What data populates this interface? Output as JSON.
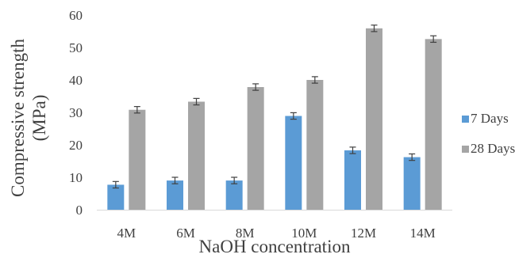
{
  "chart_data": {
    "type": "bar",
    "title": "",
    "xlabel": "NaOH concentration",
    "ylabel_lines": [
      "Compressive strength",
      "(MPa)"
    ],
    "categories": [
      "4M",
      "6M",
      "8M",
      "10M",
      "12M",
      "14M"
    ],
    "ylim": [
      0,
      60
    ],
    "yticks": [
      0,
      10,
      20,
      30,
      40,
      50,
      60
    ],
    "grid": false,
    "legend_position": "right",
    "series": [
      {
        "name": "7 Days",
        "color": "#5B9BD5",
        "values": [
          7.7,
          9.0,
          9.0,
          28.9,
          18.3,
          16.2
        ],
        "errors": [
          1.0,
          1.0,
          1.0,
          1.0,
          1.0,
          1.0
        ]
      },
      {
        "name": "28 Days",
        "color": "#A5A5A5",
        "values": [
          30.8,
          33.3,
          37.8,
          40.0,
          55.9,
          52.6
        ],
        "errors": [
          1.0,
          1.0,
          1.0,
          1.0,
          1.0,
          1.0
        ]
      }
    ]
  }
}
